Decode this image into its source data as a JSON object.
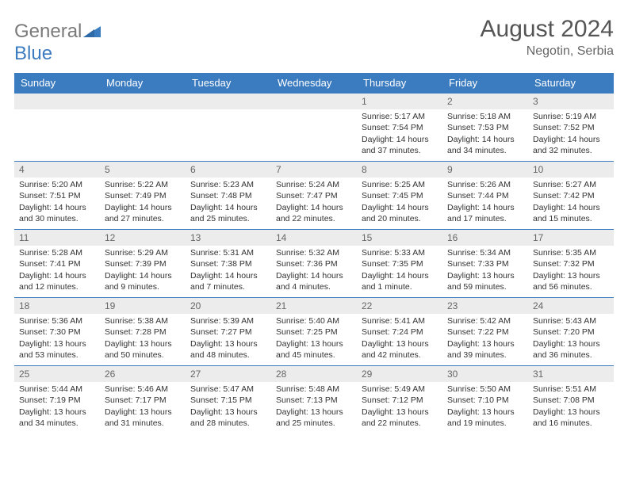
{
  "colors": {
    "header_bg": "#3b7bbf",
    "header_text": "#ffffff",
    "daynum_bg": "#ececec",
    "body_text": "#333333",
    "logo_gray": "#7a7a7a",
    "logo_blue": "#3b7bbf",
    "border": "#3b7bbf"
  },
  "logo": {
    "part1": "General",
    "part2": "Blue"
  },
  "title": "August 2024",
  "location": "Negotin, Serbia",
  "weekdays": [
    "Sunday",
    "Monday",
    "Tuesday",
    "Wednesday",
    "Thursday",
    "Friday",
    "Saturday"
  ],
  "weeks": [
    [
      {
        "n": "",
        "sr": "",
        "ss": "",
        "dl": ""
      },
      {
        "n": "",
        "sr": "",
        "ss": "",
        "dl": ""
      },
      {
        "n": "",
        "sr": "",
        "ss": "",
        "dl": ""
      },
      {
        "n": "",
        "sr": "",
        "ss": "",
        "dl": ""
      },
      {
        "n": "1",
        "sr": "Sunrise: 5:17 AM",
        "ss": "Sunset: 7:54 PM",
        "dl": "Daylight: 14 hours and 37 minutes."
      },
      {
        "n": "2",
        "sr": "Sunrise: 5:18 AM",
        "ss": "Sunset: 7:53 PM",
        "dl": "Daylight: 14 hours and 34 minutes."
      },
      {
        "n": "3",
        "sr": "Sunrise: 5:19 AM",
        "ss": "Sunset: 7:52 PM",
        "dl": "Daylight: 14 hours and 32 minutes."
      }
    ],
    [
      {
        "n": "4",
        "sr": "Sunrise: 5:20 AM",
        "ss": "Sunset: 7:51 PM",
        "dl": "Daylight: 14 hours and 30 minutes."
      },
      {
        "n": "5",
        "sr": "Sunrise: 5:22 AM",
        "ss": "Sunset: 7:49 PM",
        "dl": "Daylight: 14 hours and 27 minutes."
      },
      {
        "n": "6",
        "sr": "Sunrise: 5:23 AM",
        "ss": "Sunset: 7:48 PM",
        "dl": "Daylight: 14 hours and 25 minutes."
      },
      {
        "n": "7",
        "sr": "Sunrise: 5:24 AM",
        "ss": "Sunset: 7:47 PM",
        "dl": "Daylight: 14 hours and 22 minutes."
      },
      {
        "n": "8",
        "sr": "Sunrise: 5:25 AM",
        "ss": "Sunset: 7:45 PM",
        "dl": "Daylight: 14 hours and 20 minutes."
      },
      {
        "n": "9",
        "sr": "Sunrise: 5:26 AM",
        "ss": "Sunset: 7:44 PM",
        "dl": "Daylight: 14 hours and 17 minutes."
      },
      {
        "n": "10",
        "sr": "Sunrise: 5:27 AM",
        "ss": "Sunset: 7:42 PM",
        "dl": "Daylight: 14 hours and 15 minutes."
      }
    ],
    [
      {
        "n": "11",
        "sr": "Sunrise: 5:28 AM",
        "ss": "Sunset: 7:41 PM",
        "dl": "Daylight: 14 hours and 12 minutes."
      },
      {
        "n": "12",
        "sr": "Sunrise: 5:29 AM",
        "ss": "Sunset: 7:39 PM",
        "dl": "Daylight: 14 hours and 9 minutes."
      },
      {
        "n": "13",
        "sr": "Sunrise: 5:31 AM",
        "ss": "Sunset: 7:38 PM",
        "dl": "Daylight: 14 hours and 7 minutes."
      },
      {
        "n": "14",
        "sr": "Sunrise: 5:32 AM",
        "ss": "Sunset: 7:36 PM",
        "dl": "Daylight: 14 hours and 4 minutes."
      },
      {
        "n": "15",
        "sr": "Sunrise: 5:33 AM",
        "ss": "Sunset: 7:35 PM",
        "dl": "Daylight: 14 hours and 1 minute."
      },
      {
        "n": "16",
        "sr": "Sunrise: 5:34 AM",
        "ss": "Sunset: 7:33 PM",
        "dl": "Daylight: 13 hours and 59 minutes."
      },
      {
        "n": "17",
        "sr": "Sunrise: 5:35 AM",
        "ss": "Sunset: 7:32 PM",
        "dl": "Daylight: 13 hours and 56 minutes."
      }
    ],
    [
      {
        "n": "18",
        "sr": "Sunrise: 5:36 AM",
        "ss": "Sunset: 7:30 PM",
        "dl": "Daylight: 13 hours and 53 minutes."
      },
      {
        "n": "19",
        "sr": "Sunrise: 5:38 AM",
        "ss": "Sunset: 7:28 PM",
        "dl": "Daylight: 13 hours and 50 minutes."
      },
      {
        "n": "20",
        "sr": "Sunrise: 5:39 AM",
        "ss": "Sunset: 7:27 PM",
        "dl": "Daylight: 13 hours and 48 minutes."
      },
      {
        "n": "21",
        "sr": "Sunrise: 5:40 AM",
        "ss": "Sunset: 7:25 PM",
        "dl": "Daylight: 13 hours and 45 minutes."
      },
      {
        "n": "22",
        "sr": "Sunrise: 5:41 AM",
        "ss": "Sunset: 7:24 PM",
        "dl": "Daylight: 13 hours and 42 minutes."
      },
      {
        "n": "23",
        "sr": "Sunrise: 5:42 AM",
        "ss": "Sunset: 7:22 PM",
        "dl": "Daylight: 13 hours and 39 minutes."
      },
      {
        "n": "24",
        "sr": "Sunrise: 5:43 AM",
        "ss": "Sunset: 7:20 PM",
        "dl": "Daylight: 13 hours and 36 minutes."
      }
    ],
    [
      {
        "n": "25",
        "sr": "Sunrise: 5:44 AM",
        "ss": "Sunset: 7:19 PM",
        "dl": "Daylight: 13 hours and 34 minutes."
      },
      {
        "n": "26",
        "sr": "Sunrise: 5:46 AM",
        "ss": "Sunset: 7:17 PM",
        "dl": "Daylight: 13 hours and 31 minutes."
      },
      {
        "n": "27",
        "sr": "Sunrise: 5:47 AM",
        "ss": "Sunset: 7:15 PM",
        "dl": "Daylight: 13 hours and 28 minutes."
      },
      {
        "n": "28",
        "sr": "Sunrise: 5:48 AM",
        "ss": "Sunset: 7:13 PM",
        "dl": "Daylight: 13 hours and 25 minutes."
      },
      {
        "n": "29",
        "sr": "Sunrise: 5:49 AM",
        "ss": "Sunset: 7:12 PM",
        "dl": "Daylight: 13 hours and 22 minutes."
      },
      {
        "n": "30",
        "sr": "Sunrise: 5:50 AM",
        "ss": "Sunset: 7:10 PM",
        "dl": "Daylight: 13 hours and 19 minutes."
      },
      {
        "n": "31",
        "sr": "Sunrise: 5:51 AM",
        "ss": "Sunset: 7:08 PM",
        "dl": "Daylight: 13 hours and 16 minutes."
      }
    ]
  ]
}
